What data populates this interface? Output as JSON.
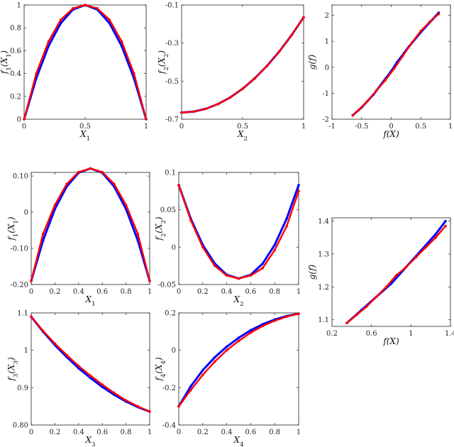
{
  "colors": {
    "model": "#0000ff",
    "estimate": "#ff0000"
  },
  "chart_data": [
    {
      "type": "scatter",
      "xlabel": "X_1",
      "ylabel": "f_1(X_1)",
      "xlim": [
        0,
        1
      ],
      "ylim": [
        0,
        1
      ],
      "xticks": [
        "0",
        "0.5",
        "1"
      ],
      "yticks": [
        "0",
        "0.2",
        "0.4",
        "0.6",
        "0.8",
        "1"
      ],
      "series": [
        {
          "color": "#0000ff",
          "x": [
            0,
            0.1,
            0.2,
            0.3,
            0.4,
            0.5,
            0.6,
            0.7,
            0.8,
            0.9,
            1
          ],
          "y": [
            0,
            0.36,
            0.64,
            0.84,
            0.96,
            1.0,
            0.96,
            0.84,
            0.64,
            0.36,
            0
          ]
        },
        {
          "color": "#ff0000",
          "x": [
            0,
            0.1,
            0.2,
            0.3,
            0.4,
            0.5,
            0.6,
            0.7,
            0.8,
            0.9,
            1
          ],
          "y": [
            0,
            0.4,
            0.68,
            0.87,
            0.97,
            1.0,
            0.97,
            0.87,
            0.68,
            0.4,
            0
          ]
        }
      ]
    },
    {
      "type": "scatter",
      "xlabel": "X_2",
      "ylabel": "f_2(X_2)",
      "xlim": [
        0,
        1
      ],
      "ylim": [
        -0.7,
        -0.1
      ],
      "xticks": [
        "0",
        "0.5",
        "1"
      ],
      "yticks": [
        "-0.7",
        "-0.5",
        "-0.3",
        "-0.1"
      ],
      "series": [
        {
          "color": "#0000ff",
          "x": [
            0,
            0.1,
            0.2,
            0.3,
            0.4,
            0.5,
            0.6,
            0.7,
            0.8,
            0.9,
            1
          ],
          "y": [
            -0.665,
            -0.66,
            -0.645,
            -0.62,
            -0.585,
            -0.54,
            -0.485,
            -0.42,
            -0.345,
            -0.26,
            -0.165
          ]
        },
        {
          "color": "#ff0000",
          "x": [
            0,
            0.1,
            0.2,
            0.3,
            0.4,
            0.5,
            0.6,
            0.7,
            0.8,
            0.9,
            1
          ],
          "y": [
            -0.665,
            -0.66,
            -0.645,
            -0.62,
            -0.585,
            -0.54,
            -0.485,
            -0.42,
            -0.345,
            -0.26,
            -0.165
          ]
        }
      ]
    },
    {
      "type": "scatter",
      "xlabel": "f(X)",
      "ylabel": "g(f)",
      "xlim": [
        -1,
        1
      ],
      "ylim": [
        -2,
        2.4
      ],
      "xticks": [
        "-1",
        "-0.5",
        "0",
        "0.5",
        "1"
      ],
      "yticks": [
        "-2",
        "-1",
        "0",
        "1",
        "2"
      ],
      "series": [
        {
          "color": "#0000ff",
          "x": [
            -0.65,
            -0.5,
            -0.3,
            -0.1,
            0,
            0.1,
            0.3,
            0.5,
            0.7,
            0.8
          ],
          "y": [
            -1.85,
            -1.55,
            -1.05,
            -0.45,
            -0.15,
            0.2,
            0.8,
            1.35,
            1.85,
            2.1
          ]
        },
        {
          "color": "#ff0000",
          "x": [
            -0.65,
            -0.55,
            -0.4,
            -0.25,
            -0.1,
            0.05,
            0.2,
            0.35,
            0.5,
            0.65,
            0.8
          ],
          "y": [
            -1.85,
            -1.65,
            -1.3,
            -0.9,
            -0.5,
            -0.05,
            0.45,
            0.95,
            1.4,
            1.75,
            2.05
          ]
        }
      ]
    },
    {
      "type": "scatter",
      "xlabel": "X_1",
      "ylabel": "f_1(X_1)",
      "xlim": [
        0,
        1
      ],
      "ylim": [
        -0.2,
        0.11
      ],
      "xticks": [
        "0",
        "0.2",
        "0.4",
        "0.6",
        "0.8",
        "1"
      ],
      "yticks": [
        "-0.20",
        "-0.10",
        "0",
        "0.10"
      ],
      "series": [
        {
          "color": "#0000ff",
          "x": [
            0,
            0.1,
            0.2,
            0.3,
            0.4,
            0.5,
            0.6,
            0.7,
            0.8,
            0.9,
            1
          ],
          "y": [
            -0.19,
            -0.078,
            0.009,
            0.071,
            0.109,
            0.121,
            0.109,
            0.071,
            0.009,
            -0.078,
            -0.19
          ]
        },
        {
          "color": "#ff0000",
          "x": [
            0,
            0.1,
            0.2,
            0.3,
            0.4,
            0.5,
            0.6,
            0.7,
            0.8,
            0.9,
            1
          ],
          "y": [
            -0.19,
            -0.06,
            0.02,
            0.078,
            0.111,
            0.121,
            0.111,
            0.078,
            0.02,
            -0.06,
            -0.19
          ]
        }
      ]
    },
    {
      "type": "scatter",
      "xlabel": "X_2",
      "ylabel": "f_2(X_2)",
      "xlim": [
        0,
        1
      ],
      "ylim": [
        -0.05,
        0.1
      ],
      "xticks": [
        "0",
        "0.2",
        "0.4",
        "0.6",
        "0.8",
        "1"
      ],
      "yticks": [
        "-0.05",
        "0",
        "0.05",
        "0.1"
      ],
      "series": [
        {
          "color": "#0000ff",
          "x": [
            0,
            0.1,
            0.2,
            0.3,
            0.4,
            0.5,
            0.6,
            0.7,
            0.8,
            0.9,
            1
          ],
          "y": [
            0.083,
            0.038,
            0.003,
            -0.022,
            -0.037,
            -0.042,
            -0.037,
            -0.022,
            0.003,
            0.038,
            0.083
          ]
        },
        {
          "color": "#ff0000",
          "x": [
            0,
            0.1,
            0.2,
            0.3,
            0.4,
            0.5,
            0.6,
            0.7,
            0.8,
            0.9,
            1
          ],
          "y": [
            0.083,
            0.036,
            0.0,
            -0.025,
            -0.038,
            -0.042,
            -0.038,
            -0.028,
            -0.004,
            0.028,
            0.075
          ]
        }
      ]
    },
    {
      "type": "scatter",
      "xlabel": "f(X)",
      "ylabel": "g(f)",
      "xlim": [
        0.2,
        1.4
      ],
      "ylim": [
        1.08,
        1.41
      ],
      "xticks": [
        "0.2",
        "0.6",
        "1",
        "1.4"
      ],
      "yticks": [
        "1.1",
        "1.2",
        "1.3",
        "1.4"
      ],
      "series": [
        {
          "color": "#0000ff",
          "x": [
            0.35,
            0.5,
            0.65,
            0.8,
            0.95,
            1.1,
            1.25,
            1.35
          ],
          "y": [
            1.09,
            1.13,
            1.17,
            1.21,
            1.26,
            1.31,
            1.36,
            1.4
          ]
        },
        {
          "color": "#ff0000",
          "x": [
            0.35,
            0.45,
            0.55,
            0.65,
            0.75,
            0.85,
            0.95,
            1.05,
            1.15,
            1.25,
            1.35
          ],
          "y": [
            1.09,
            1.115,
            1.14,
            1.17,
            1.2,
            1.235,
            1.26,
            1.29,
            1.32,
            1.35,
            1.385
          ]
        }
      ]
    },
    {
      "type": "scatter",
      "xlabel": "X_3",
      "ylabel": "f_3(X_3)",
      "xlim": [
        0,
        1
      ],
      "ylim": [
        0.8,
        1.1
      ],
      "xticks": [
        "0",
        "0.2",
        "0.4",
        "0.6",
        "0.8",
        "1"
      ],
      "yticks": [
        "0.80",
        "0.9",
        "1",
        "1.1"
      ],
      "series": [
        {
          "color": "#0000ff",
          "x": [
            0,
            0.1,
            0.2,
            0.3,
            0.4,
            0.5,
            0.6,
            0.7,
            0.8,
            0.9,
            1
          ],
          "y": [
            1.09,
            1.05,
            1.014,
            0.982,
            0.952,
            0.926,
            0.902,
            0.881,
            0.863,
            0.848,
            0.836
          ]
        },
        {
          "color": "#ff0000",
          "x": [
            0,
            0.1,
            0.2,
            0.3,
            0.4,
            0.5,
            0.6,
            0.7,
            0.8,
            0.9,
            1
          ],
          "y": [
            1.09,
            1.052,
            1.018,
            0.987,
            0.958,
            0.932,
            0.908,
            0.886,
            0.866,
            0.85,
            0.836
          ]
        }
      ]
    },
    {
      "type": "scatter",
      "xlabel": "X_4",
      "ylabel": "f_4(X_4)",
      "xlim": [
        0,
        1
      ],
      "ylim": [
        -0.4,
        0.2
      ],
      "xticks": [
        "0",
        "0.2",
        "0.4",
        "0.6",
        "0.8",
        "1"
      ],
      "yticks": [
        "-0.4",
        "-0.2",
        "0",
        "0.2"
      ],
      "series": [
        {
          "color": "#0000ff",
          "x": [
            0,
            0.1,
            0.2,
            0.3,
            0.4,
            0.5,
            0.6,
            0.7,
            0.8,
            0.9,
            1
          ],
          "y": [
            -0.3,
            -0.193,
            -0.107,
            -0.038,
            0.019,
            0.067,
            0.107,
            0.139,
            0.164,
            0.183,
            0.196
          ]
        },
        {
          "color": "#ff0000",
          "x": [
            0,
            0.1,
            0.2,
            0.3,
            0.4,
            0.5,
            0.6,
            0.7,
            0.8,
            0.9,
            1
          ],
          "y": [
            -0.3,
            -0.213,
            -0.132,
            -0.061,
            0.0,
            0.05,
            0.094,
            0.13,
            0.158,
            0.18,
            0.196
          ]
        }
      ]
    }
  ]
}
